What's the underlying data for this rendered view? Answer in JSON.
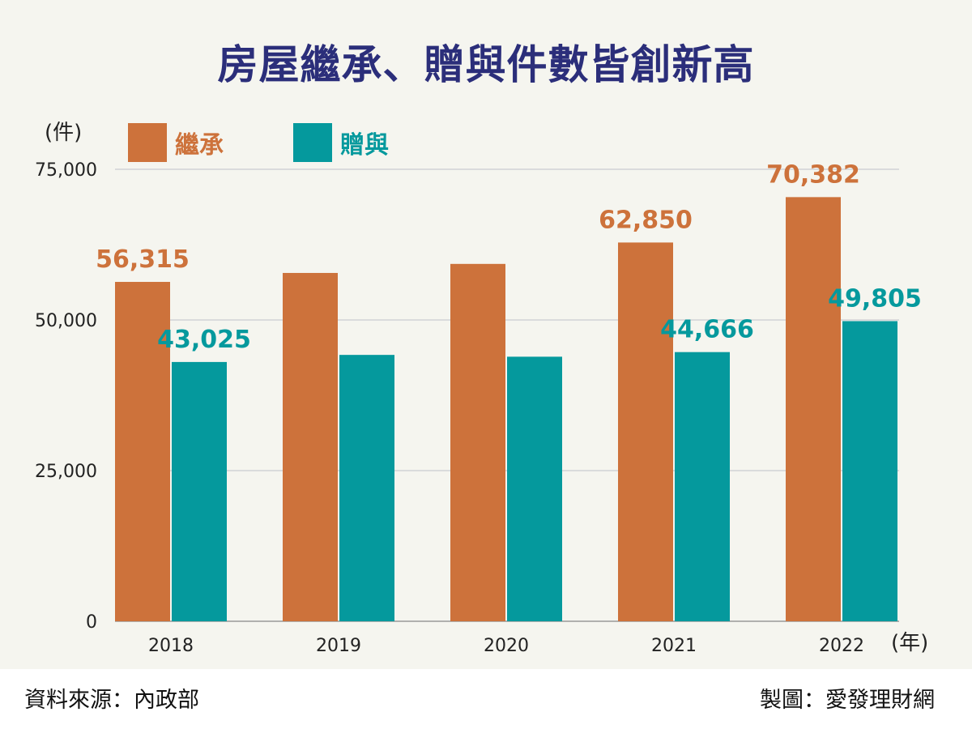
{
  "title": "房屋繼承、贈與件數皆創新高",
  "source": "資料來源：內政部",
  "credit": "製圖：愛發理財網",
  "chart_data": {
    "type": "bar",
    "categories": [
      "2018",
      "2019",
      "2020",
      "2021",
      "2022"
    ],
    "series": [
      {
        "name": "繼承",
        "color": "#cd723b",
        "values": [
          56315,
          57800,
          59300,
          62850,
          70382
        ],
        "labels": [
          "56,315",
          "",
          "",
          "62,850",
          "70,382"
        ]
      },
      {
        "name": "贈與",
        "color": "#05999d",
        "values": [
          43025,
          44200,
          43900,
          44666,
          49805
        ],
        "labels": [
          "43,025",
          "",
          "",
          "44,666",
          "49,805"
        ]
      }
    ],
    "ylabel": "(件)",
    "xlabel": "(年)",
    "ylim": [
      0,
      75000
    ],
    "yticks": [
      "0",
      "25,000",
      "50,000",
      "75,000"
    ],
    "ytick_values": [
      0,
      25000,
      50000,
      75000
    ],
    "grid": true,
    "legend": "top-left"
  }
}
